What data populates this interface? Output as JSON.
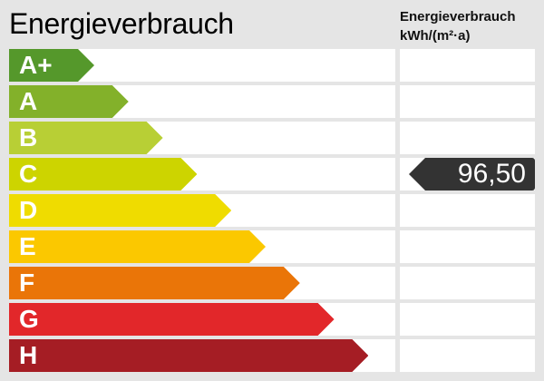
{
  "header": {
    "title": "Energieverbrauch",
    "unit_line1": "Energieverbrauch",
    "unit_line2": "kWh/(m²·a)"
  },
  "classes": [
    {
      "label": "A+",
      "color": "#55982b"
    },
    {
      "label": "A",
      "color": "#83b12a"
    },
    {
      "label": "B",
      "color": "#b8cf35"
    },
    {
      "label": "C",
      "color": "#cdd400"
    },
    {
      "label": "D",
      "color": "#efdc00"
    },
    {
      "label": "E",
      "color": "#fbc800"
    },
    {
      "label": "F",
      "color": "#ea7508"
    },
    {
      "label": "G",
      "color": "#e2272a"
    },
    {
      "label": "H",
      "color": "#a51d24"
    }
  ],
  "indicator": {
    "value": "96,50",
    "class_index": 3,
    "color": "#333333"
  }
}
